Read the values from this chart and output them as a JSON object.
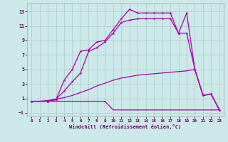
{
  "xlabel": "Windchill (Refroidissement éolien,°C)",
  "background_color": "#cce8e8",
  "grid_color": "#aacccc",
  "line_color": "#aa00aa",
  "xlim": [
    -0.5,
    23.5
  ],
  "ylim": [
    -1.5,
    14.2
  ],
  "yticks": [
    -1,
    1,
    3,
    5,
    7,
    9,
    11,
    13
  ],
  "xticks": [
    0,
    1,
    2,
    3,
    4,
    5,
    6,
    7,
    8,
    9,
    10,
    11,
    12,
    13,
    14,
    15,
    16,
    17,
    18,
    19,
    20,
    21,
    22,
    23
  ],
  "lines": [
    {
      "x": [
        0,
        1,
        2,
        3,
        4,
        5,
        6,
        7,
        8,
        9,
        10,
        11,
        12,
        13,
        14,
        15,
        16,
        17,
        18,
        19,
        20,
        21,
        22,
        23
      ],
      "y": [
        0.6,
        0.6,
        0.6,
        0.6,
        0.6,
        0.6,
        0.6,
        0.6,
        0.6,
        0.6,
        -0.6,
        -0.6,
        -0.6,
        -0.6,
        -0.6,
        -0.6,
        -0.6,
        -0.6,
        -0.6,
        -0.6,
        -0.6,
        -0.6,
        -0.6,
        -0.6
      ],
      "marker": false
    },
    {
      "x": [
        0,
        1,
        2,
        3,
        4,
        5,
        6,
        7,
        8,
        9,
        10,
        11,
        12,
        13,
        14,
        15,
        16,
        17,
        18,
        19,
        20,
        21,
        22,
        23
      ],
      "y": [
        0.6,
        0.6,
        0.7,
        0.9,
        1.1,
        1.4,
        1.8,
        2.2,
        2.7,
        3.1,
        3.5,
        3.8,
        4.0,
        4.2,
        4.3,
        4.4,
        4.5,
        4.6,
        4.7,
        4.8,
        5.0,
        1.4,
        1.6,
        -0.6
      ],
      "marker": false
    },
    {
      "x": [
        0,
        2,
        3,
        4,
        5,
        6,
        7,
        8,
        9,
        10,
        11,
        12,
        13,
        14,
        15,
        16,
        17,
        18,
        19,
        20,
        21,
        22,
        23
      ],
      "y": [
        0.6,
        0.6,
        0.9,
        2.0,
        3.3,
        4.5,
        7.5,
        8.0,
        8.8,
        10.0,
        11.5,
        11.8,
        12.0,
        12.0,
        12.0,
        12.0,
        12.0,
        10.0,
        10.0,
        5.0,
        1.4,
        1.6,
        -0.6
      ],
      "marker": true
    },
    {
      "x": [
        0,
        2,
        3,
        4,
        5,
        6,
        7,
        8,
        9,
        10,
        11,
        12,
        13,
        14,
        15,
        16,
        17,
        18,
        19,
        20,
        21,
        22,
        23
      ],
      "y": [
        0.6,
        0.6,
        0.8,
        3.5,
        5.0,
        7.5,
        7.7,
        8.8,
        9.0,
        10.5,
        12.0,
        13.3,
        12.8,
        12.8,
        12.8,
        12.8,
        12.8,
        10.0,
        12.8,
        5.0,
        1.4,
        1.6,
        -0.6
      ],
      "marker": true
    }
  ]
}
